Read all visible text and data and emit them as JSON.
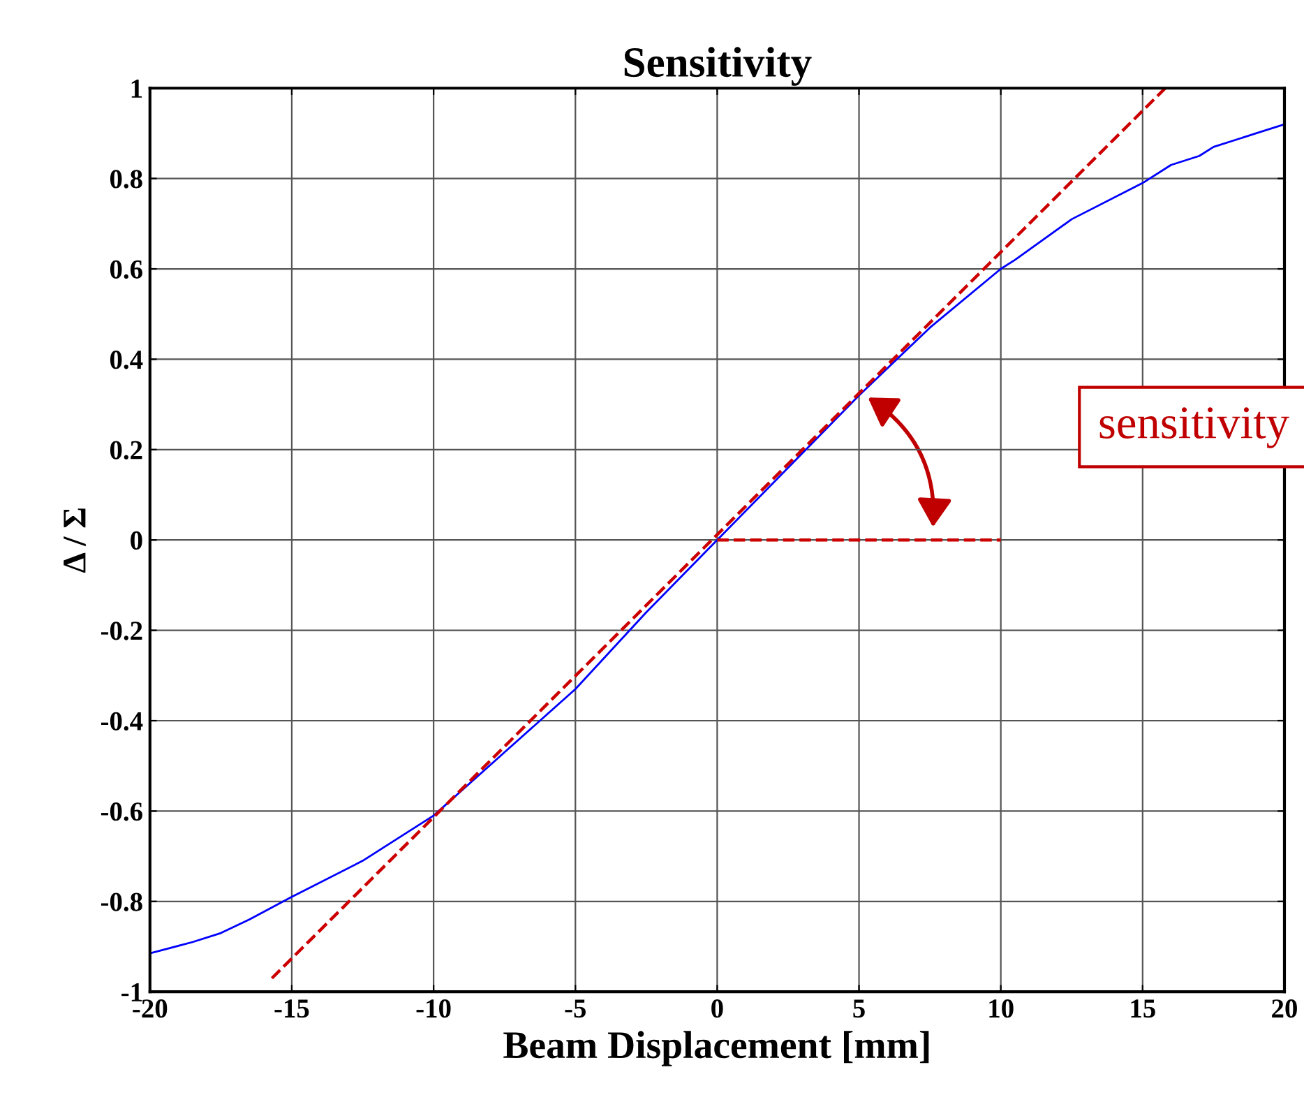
{
  "chart_data": {
    "type": "line",
    "title": "Sensitivity",
    "xlabel": "Beam Displacement [mm]",
    "ylabel": "Δ / Σ",
    "xlim": [
      -20,
      20
    ],
    "ylim": [
      -1,
      1
    ],
    "xticks": [
      -20,
      -15,
      -10,
      -5,
      0,
      5,
      10,
      15,
      20
    ],
    "yticks": [
      -1,
      -0.8,
      -0.6,
      -0.4,
      -0.2,
      0,
      0.2,
      0.4,
      0.6,
      0.8,
      1
    ],
    "grid": true,
    "annotations": [
      "sensitivity"
    ],
    "series": [
      {
        "color": "#0000ff",
        "line_style": "solid",
        "x": [
          -20,
          -18.5,
          -17.5,
          -16.5,
          -15,
          -12.5,
          -10,
          -7.5,
          -5,
          -2.5,
          0,
          2.5,
          5,
          7.5,
          10,
          10.5,
          12.5,
          15,
          16,
          17,
          17.5,
          19,
          20
        ],
        "values": [
          -0.915,
          -0.89,
          -0.87,
          -0.84,
          -0.79,
          -0.71,
          -0.61,
          -0.47,
          -0.33,
          -0.16,
          0.0,
          0.16,
          0.32,
          0.47,
          0.6,
          0.62,
          0.71,
          0.79,
          0.83,
          0.85,
          0.87,
          0.9,
          0.92
        ]
      },
      {
        "color": "#cc0000",
        "line_style": "dashed",
        "x": [
          -15.7,
          15.8
        ],
        "values": [
          -0.97,
          1.0
        ]
      },
      {
        "color": "#cc0000",
        "line_style": "dashed",
        "x": [
          0,
          10
        ],
        "values": [
          0,
          0
        ]
      }
    ]
  }
}
